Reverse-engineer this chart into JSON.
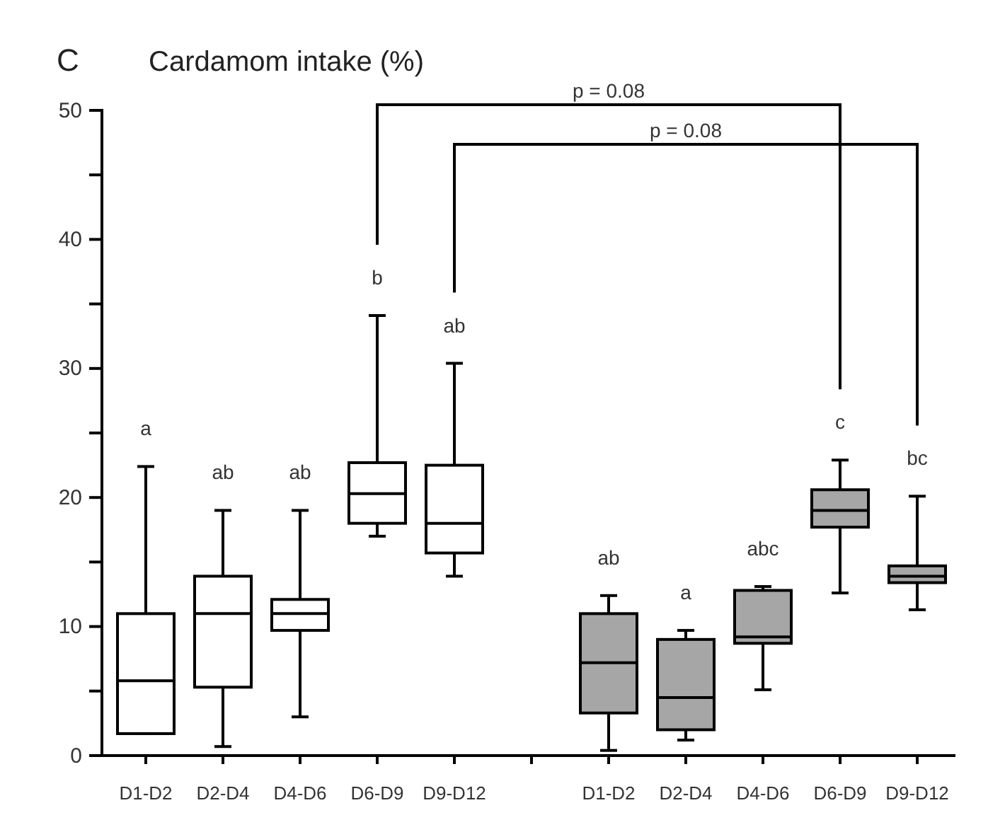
{
  "chart_data": {
    "type": "box",
    "title": "Cardamom intake (%)",
    "categories": [
      "D1-D2",
      "D2-D4",
      "D4-D6",
      "D6-D9",
      "D9-D12",
      null,
      "D1-D2",
      "D2-D4",
      "D4-D6",
      "D6-D9",
      "D9-D12"
    ],
    "ylim": [
      0,
      50
    ],
    "yticks": [
      0,
      {
        "value": 5,
        "label": null
      },
      10,
      {
        "value": 15,
        "label": null
      },
      20,
      {
        "value": 25,
        "label": null
      },
      30,
      {
        "value": 35,
        "label": null
      },
      40,
      {
        "value": 45,
        "label": null
      },
      50
    ],
    "grid": false,
    "series": [
      {
        "color": "#ffffff",
        "boxes": [
          {
            "low": 1.7,
            "q1": 1.7,
            "median": 5.8,
            "q3": 11.0,
            "high": 22.4
          },
          {
            "low": 0.7,
            "q1": 5.3,
            "median": 11.0,
            "q3": 13.9,
            "high": 19.0
          },
          {
            "low": 3.0,
            "q1": 9.7,
            "median": 11.0,
            "q3": 12.1,
            "high": 19.0
          },
          {
            "low": 17.0,
            "q1": 18.0,
            "median": 20.3,
            "q3": 22.7,
            "high": 34.1
          },
          {
            "low": 13.9,
            "q1": 15.7,
            "median": 18.0,
            "q3": 22.5,
            "high": 30.4
          },
          null,
          null,
          null,
          null,
          null,
          null
        ]
      },
      {
        "color": "#a6a6a6",
        "boxes": [
          null,
          null,
          null,
          null,
          null,
          null,
          {
            "low": 0.4,
            "q1": 3.3,
            "median": 7.2,
            "q3": 11.0,
            "high": 12.4
          },
          {
            "low": 1.2,
            "q1": 2.0,
            "median": 4.5,
            "q3": 9.0,
            "high": 9.7
          },
          {
            "low": 5.1,
            "q1": 8.7,
            "median": 9.2,
            "q3": 12.8,
            "high": 13.1
          },
          {
            "low": 12.6,
            "q1": 17.7,
            "median": 19.0,
            "q3": 20.6,
            "high": 22.9
          },
          {
            "low": 11.3,
            "q1": 13.4,
            "median": 13.9,
            "q3": 14.7,
            "high": 20.1
          }
        ]
      }
    ],
    "annotations": [
      "C",
      "a",
      "ab",
      "ab",
      "b",
      "ab",
      "ab",
      "a",
      "abc",
      "c",
      "bc",
      "p = 0.08",
      "p = 0.08"
    ]
  }
}
